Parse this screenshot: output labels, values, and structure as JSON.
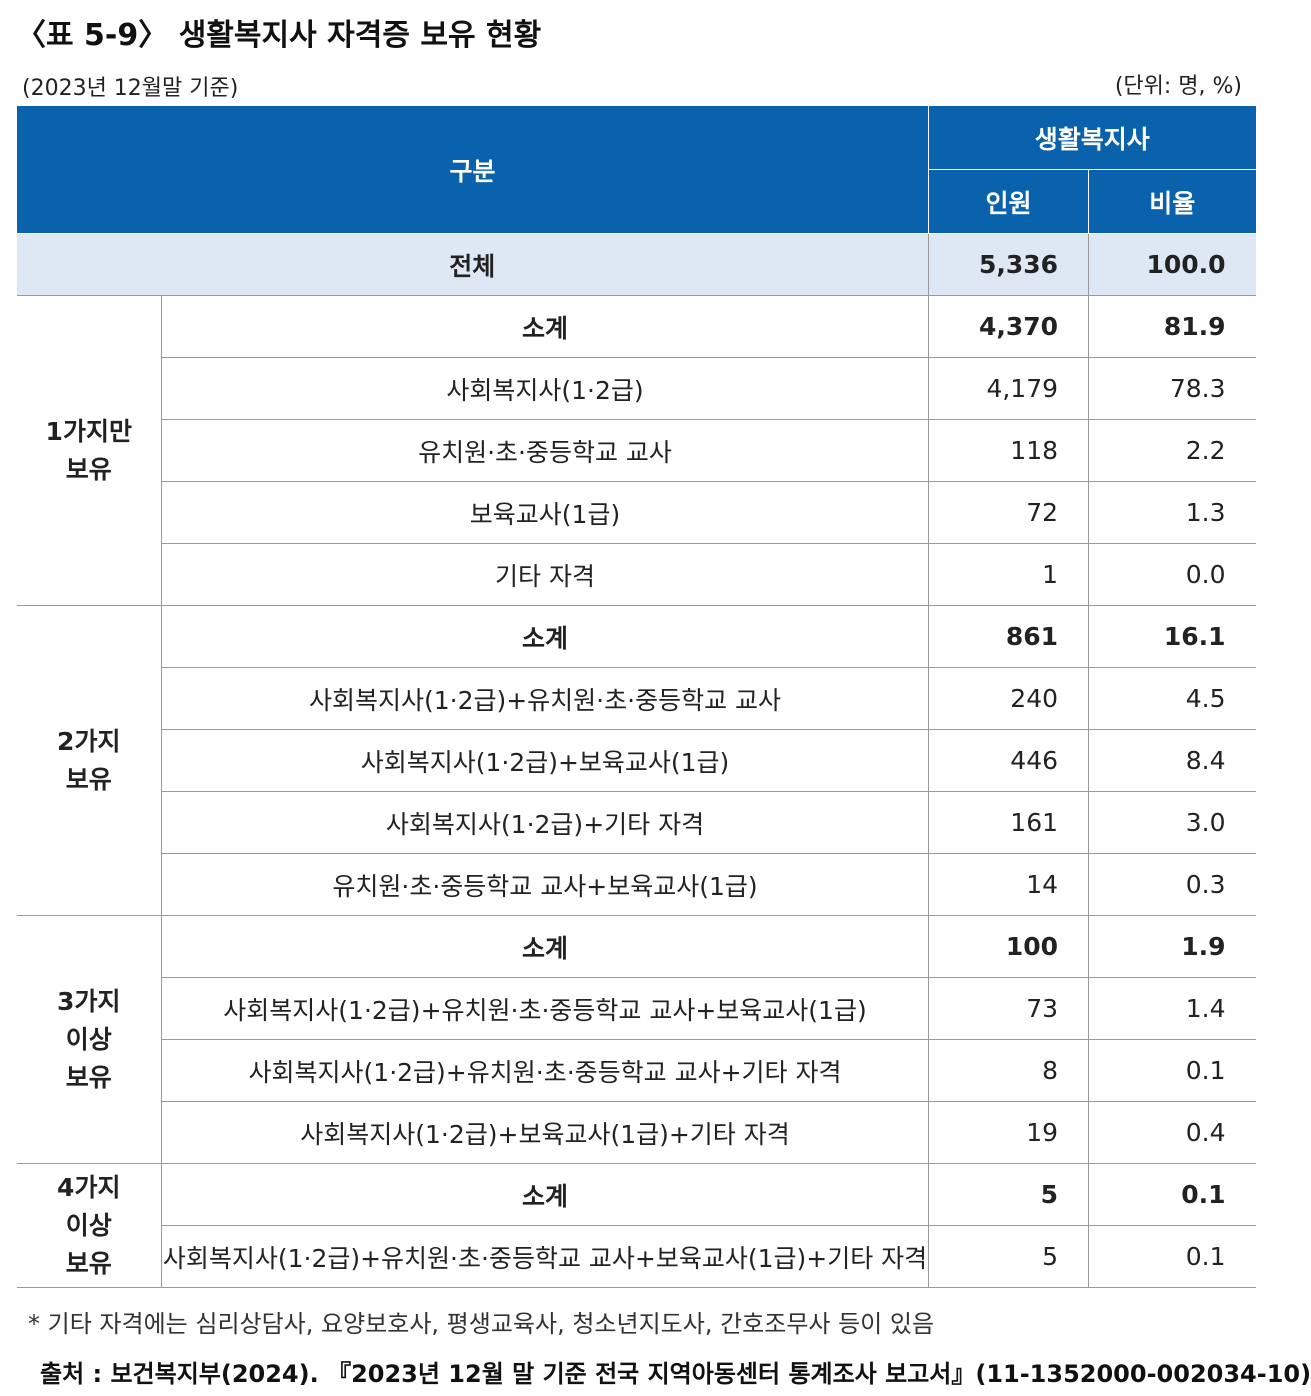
{
  "title": "〈표 5-9〉 생활복지사 자격증 보유 현황",
  "basis": "(2023년 12월말 기준)",
  "unit": "(단위: 명, %)",
  "table": {
    "header": {
      "category": "구분",
      "group": "생활복지사",
      "count": "인원",
      "ratio": "비율"
    },
    "total": {
      "label": "전체",
      "count": "5,336",
      "ratio": "100.0"
    },
    "groups": [
      {
        "label": [
          "1가지만",
          "보유"
        ],
        "rows": [
          {
            "label": "소계",
            "count": "4,370",
            "ratio": "81.9"
          },
          {
            "label": "사회복지사(1·2급)",
            "count": "4,179",
            "ratio": "78.3"
          },
          {
            "label": "유치원·초·중등학교 교사",
            "count": "118",
            "ratio": "2.2"
          },
          {
            "label": "보육교사(1급)",
            "count": "72",
            "ratio": "1.3"
          },
          {
            "label": "기타 자격",
            "count": "1",
            "ratio": "0.0"
          }
        ]
      },
      {
        "label": [
          "2가지",
          "보유"
        ],
        "rows": [
          {
            "label": "소계",
            "count": "861",
            "ratio": "16.1"
          },
          {
            "label": "사회복지사(1·2급)+유치원·초·중등학교 교사",
            "count": "240",
            "ratio": "4.5"
          },
          {
            "label": "사회복지사(1·2급)+보육교사(1급)",
            "count": "446",
            "ratio": "8.4"
          },
          {
            "label": "사회복지사(1·2급)+기타 자격",
            "count": "161",
            "ratio": "3.0"
          },
          {
            "label": "유치원·초·중등학교 교사+보육교사(1급)",
            "count": "14",
            "ratio": "0.3"
          }
        ]
      },
      {
        "label": [
          "3가지",
          "이상",
          "보유"
        ],
        "rows": [
          {
            "label": "소계",
            "count": "100",
            "ratio": "1.9"
          },
          {
            "label": "사회복지사(1·2급)+유치원·초·중등학교 교사+보육교사(1급)",
            "count": "73",
            "ratio": "1.4"
          },
          {
            "label": "사회복지사(1·2급)+유치원·초·중등학교 교사+기타 자격",
            "count": "8",
            "ratio": "0.1"
          },
          {
            "label": "사회복지사(1·2급)+보육교사(1급)+기타 자격",
            "count": "19",
            "ratio": "0.4"
          }
        ]
      },
      {
        "label": [
          "4가지",
          "이상",
          "보유"
        ],
        "rows": [
          {
            "label": "소계",
            "count": "5",
            "ratio": "0.1"
          },
          {
            "label": "사회복지사(1·2급)+유치원·초·중등학교 교사+보육교사(1급)+기타 자격",
            "count": "5",
            "ratio": "0.1"
          }
        ]
      }
    ]
  },
  "footnote": "* 기타 자격에는 심리상담사, 요양보호사, 평생교육사, 청소년지도사, 간호조무사 등이 있음",
  "source": "출처 : 보건복지부(2024). 『2023년 12월 말 기준 전국 지역아동센터 통계조사 보고서』(11-1352000-002034-10)"
}
